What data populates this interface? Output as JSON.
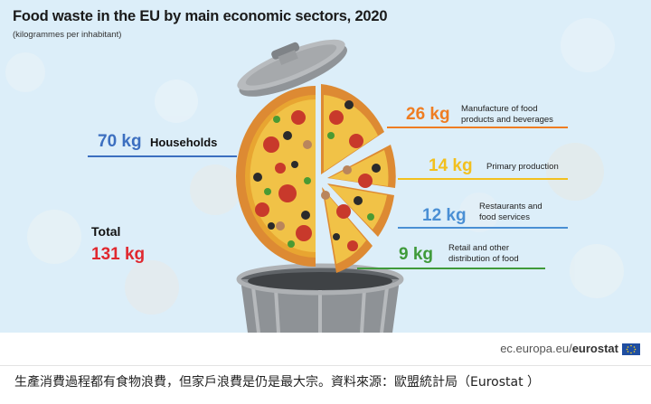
{
  "chart_data": {
    "type": "infographic",
    "title": "Food waste in the EU by main economic sectors, 2020",
    "subtitle": "(kilogrammes per inhabitant)",
    "unit": "kg",
    "categories": [
      "Households",
      "Manufacture of food products and beverages",
      "Primary production",
      "Restaurants and food services",
      "Retail and other distribution of food"
    ],
    "values": [
      70,
      26,
      14,
      12,
      9
    ],
    "value_labels": [
      "70 kg",
      "26 kg",
      "14 kg",
      "12 kg",
      "9 kg"
    ],
    "colors": [
      "#3c6fc0",
      "#ef7d22",
      "#f2c01e",
      "#4a8fd4",
      "#3f9a3a"
    ],
    "total": {
      "label": "Total",
      "value": 131,
      "value_label": "131 kg",
      "color": "#e0282f"
    }
  },
  "labels": {
    "households": "Households",
    "manufacture": "Manufacture of food\nproducts and beverages",
    "primary": "Primary production",
    "restaurants": "Restaurants and\nfood services",
    "retail": "Retail and other\ndistribution of food"
  },
  "source": {
    "prefix": "ec.europa.eu/",
    "brand": "eurostat"
  },
  "caption": "生產消費過程都有食物浪費，但家戶浪費是仍是最大宗。資料來源：歐盟統計局（Eurostat ）"
}
